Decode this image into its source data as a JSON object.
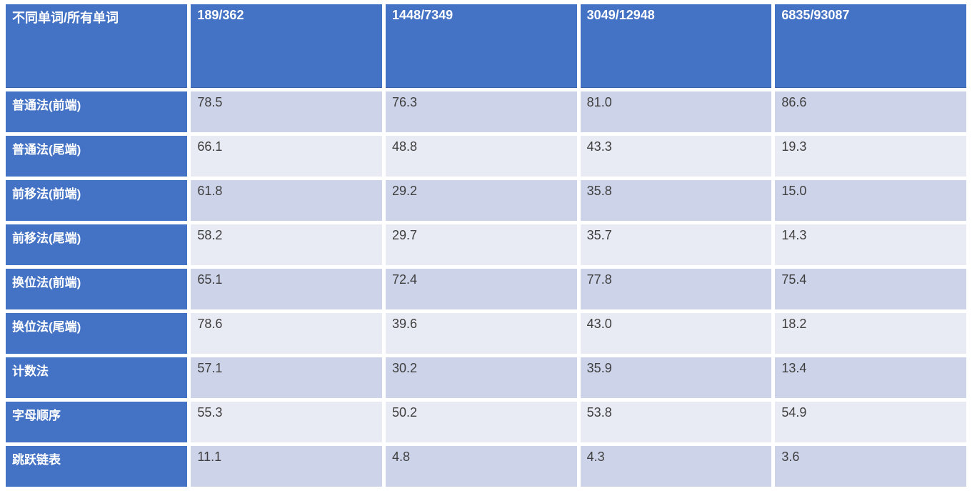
{
  "colors": {
    "header_bg": "#4472C4",
    "band_dark": "#CDD4E9",
    "band_light": "#E9EBF4",
    "header_text": "#FFFFFF",
    "data_text": "#3F3F3F",
    "cell_gap": "#FFFFFF"
  },
  "chart_data": {
    "type": "table",
    "corner_label": "不同单词/所有单词",
    "columns": [
      "189/362",
      "1448/7349",
      "3049/12948",
      "6835/93087"
    ],
    "rows": [
      {
        "label": "普通法(前端)",
        "values": [
          78.5,
          76.3,
          81.0,
          86.6
        ],
        "display": [
          "78.5",
          "76.3",
          "81.0",
          "86.6"
        ]
      },
      {
        "label": "普通法(尾端)",
        "values": [
          66.1,
          48.8,
          43.3,
          19.3
        ],
        "display": [
          "66.1",
          "48.8",
          "43.3",
          "19.3"
        ]
      },
      {
        "label": "前移法(前端)",
        "values": [
          61.8,
          29.2,
          35.8,
          15.0
        ],
        "display": [
          "61.8",
          "29.2",
          "35.8",
          "15.0"
        ]
      },
      {
        "label": "前移法(尾端)",
        "values": [
          58.2,
          29.7,
          35.7,
          14.3
        ],
        "display": [
          "58.2",
          "29.7",
          "35.7",
          "14.3"
        ]
      },
      {
        "label": "换位法(前端)",
        "values": [
          65.1,
          72.4,
          77.8,
          75.4
        ],
        "display": [
          "65.1",
          "72.4",
          "77.8",
          "75.4"
        ]
      },
      {
        "label": "换位法(尾端)",
        "values": [
          78.6,
          39.6,
          43.0,
          18.2
        ],
        "display": [
          "78.6",
          "39.6",
          "43.0",
          "18.2"
        ]
      },
      {
        "label": "计数法",
        "values": [
          57.1,
          30.2,
          35.9,
          13.4
        ],
        "display": [
          "57.1",
          "30.2",
          "35.9",
          "13.4"
        ]
      },
      {
        "label": "字母顺序",
        "values": [
          55.3,
          50.2,
          53.8,
          54.9
        ],
        "display": [
          "55.3",
          "50.2",
          "53.8",
          "54.9"
        ]
      },
      {
        "label": "跳跃链表",
        "values": [
          11.1,
          4.8,
          4.3,
          3.6
        ],
        "display": [
          "11.1",
          "4.8",
          "4.3",
          "3.6"
        ]
      }
    ],
    "layout_hints": {
      "header_row": "blue header with white bold text",
      "first_column": "blue row labels with white bold text",
      "banding": "alternating dark/light lavender data rows starting dark"
    }
  }
}
